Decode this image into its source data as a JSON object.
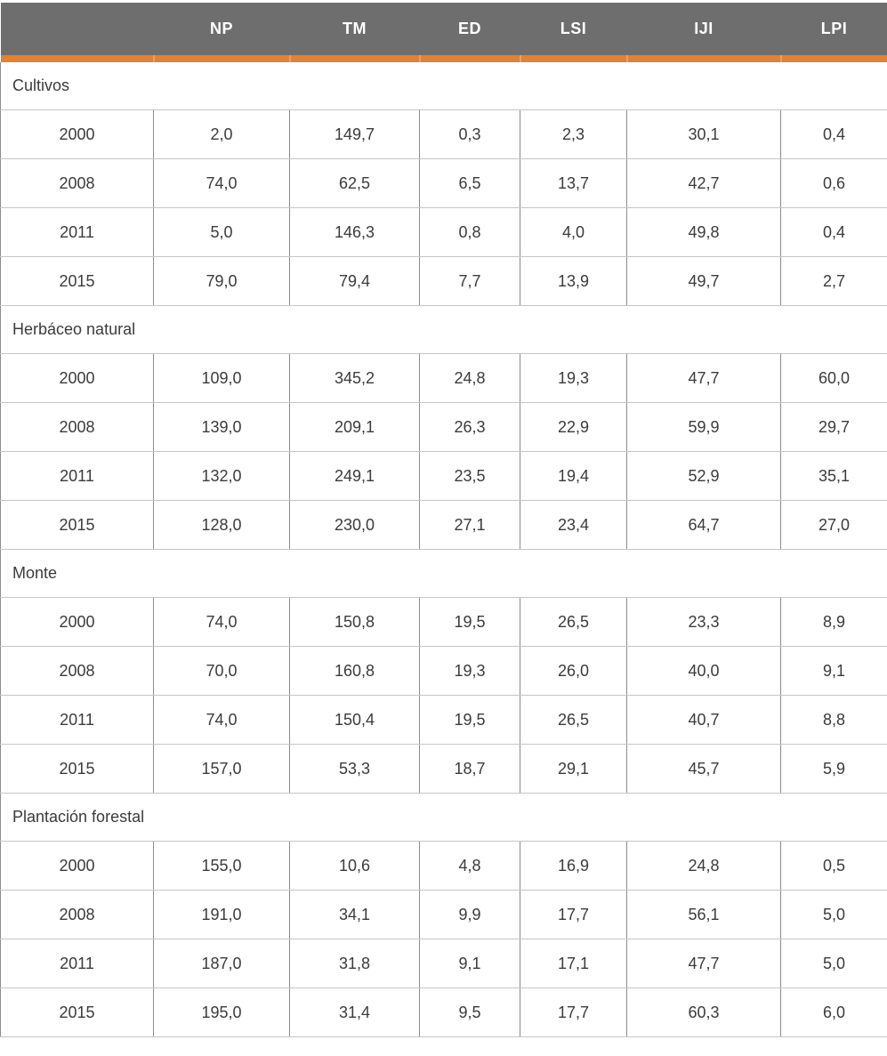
{
  "colors": {
    "header_bg": "#6E6E6E",
    "header_text": "#FFFFFF",
    "accent_orange": "#E08238",
    "accent_separator": "#EDA15F",
    "grid_horizontal": "#C6C6C6",
    "grid_vertical": "#8C8C8C",
    "cell_text": "#3B3B3B"
  },
  "table": {
    "columns": [
      "",
      "NP",
      "TM",
      "ED",
      "LSI",
      "IJI",
      "LPI"
    ],
    "sections": [
      {
        "label": "Cultivos",
        "rows": [
          {
            "year": "2000",
            "values": [
              "2,0",
              "149,7",
              "0,3",
              "2,3",
              "30,1",
              "0,4"
            ]
          },
          {
            "year": "2008",
            "values": [
              "74,0",
              "62,5",
              "6,5",
              "13,7",
              "42,7",
              "0,6"
            ]
          },
          {
            "year": "2011",
            "values": [
              "5,0",
              "146,3",
              "0,8",
              "4,0",
              "49,8",
              "0,4"
            ]
          },
          {
            "year": "2015",
            "values": [
              "79,0",
              "79,4",
              "7,7",
              "13,9",
              "49,7",
              "2,7"
            ]
          }
        ]
      },
      {
        "label": "Herbáceo natural",
        "rows": [
          {
            "year": "2000",
            "values": [
              "109,0",
              "345,2",
              "24,8",
              "19,3",
              "47,7",
              "60,0"
            ]
          },
          {
            "year": "2008",
            "values": [
              "139,0",
              "209,1",
              "26,3",
              "22,9",
              "59,9",
              "29,7"
            ]
          },
          {
            "year": "2011",
            "values": [
              "132,0",
              "249,1",
              "23,5",
              "19,4",
              "52,9",
              "35,1"
            ]
          },
          {
            "year": "2015",
            "values": [
              "128,0",
              "230,0",
              "27,1",
              "23,4",
              "64,7",
              "27,0"
            ]
          }
        ]
      },
      {
        "label": "Monte",
        "rows": [
          {
            "year": "2000",
            "values": [
              "74,0",
              "150,8",
              "19,5",
              "26,5",
              "23,3",
              "8,9"
            ]
          },
          {
            "year": "2008",
            "values": [
              "70,0",
              "160,8",
              "19,3",
              "26,0",
              "40,0",
              "9,1"
            ]
          },
          {
            "year": "2011",
            "values": [
              "74,0",
              "150,4",
              "19,5",
              "26,5",
              "40,7",
              "8,8"
            ]
          },
          {
            "year": "2015",
            "values": [
              "157,0",
              "53,3",
              "18,7",
              "29,1",
              "45,7",
              "5,9"
            ]
          }
        ]
      },
      {
        "label": "Plantación forestal",
        "rows": [
          {
            "year": "2000",
            "values": [
              "155,0",
              "10,6",
              "4,8",
              "16,9",
              "24,8",
              "0,5"
            ]
          },
          {
            "year": "2008",
            "values": [
              "191,0",
              "34,1",
              "9,9",
              "17,7",
              "56,1",
              "5,0"
            ]
          },
          {
            "year": "2011",
            "values": [
              "187,0",
              "31,8",
              "9,1",
              "17,1",
              "47,7",
              "5,0"
            ]
          },
          {
            "year": "2015",
            "values": [
              "195,0",
              "31,4",
              "9,5",
              "17,7",
              "60,3",
              "6,0"
            ]
          }
        ]
      }
    ]
  }
}
